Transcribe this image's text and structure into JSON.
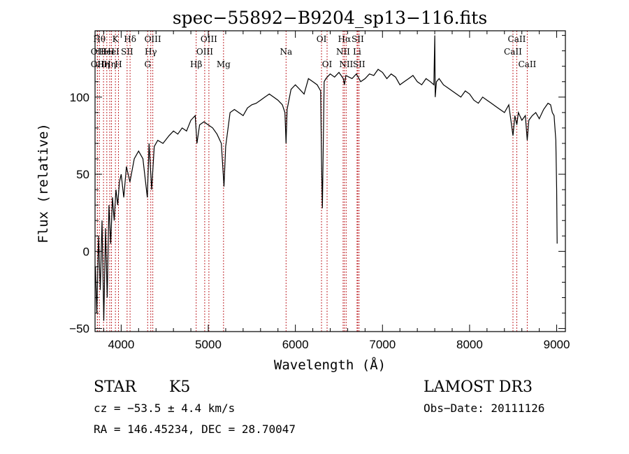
{
  "chart_data": {
    "type": "line",
    "title": "spec−55892−B9204_sp13−116.fits",
    "xlabel": "Wavelength (Å)",
    "ylabel": "Flux (relative)",
    "xlim": [
      3700,
      9100
    ],
    "ylim": [
      -52,
      143
    ],
    "x_ticks": [
      4000,
      5000,
      6000,
      7000,
      8000,
      9000
    ],
    "y_ticks": [
      -50,
      0,
      50,
      100
    ],
    "x_tick_labels": [
      "4000",
      "5000",
      "6000",
      "7000",
      "8000",
      "9000"
    ],
    "y_tick_labels": [
      "−50",
      "0",
      "50",
      "100"
    ],
    "series": [
      {
        "name": "spectrum",
        "x": [
          3705,
          3720,
          3740,
          3760,
          3780,
          3800,
          3820,
          3840,
          3860,
          3880,
          3900,
          3920,
          3940,
          3960,
          3980,
          4000,
          4030,
          4060,
          4100,
          4150,
          4200,
          4250,
          4300,
          4320,
          4350,
          4380,
          4420,
          4480,
          4550,
          4600,
          4650,
          4700,
          4750,
          4800,
          4850,
          4870,
          4900,
          4950,
          5000,
          5050,
          5100,
          5150,
          5180,
          5200,
          5250,
          5300,
          5350,
          5400,
          5450,
          5500,
          5550,
          5600,
          5650,
          5700,
          5750,
          5800,
          5850,
          5880,
          5893,
          5905,
          5950,
          6000,
          6050,
          6100,
          6150,
          6200,
          6250,
          6290,
          6300,
          6310,
          6330,
          6350,
          6400,
          6450,
          6500,
          6550,
          6563,
          6580,
          6650,
          6700,
          6750,
          6800,
          6850,
          6900,
          6950,
          7000,
          7050,
          7100,
          7150,
          7200,
          7250,
          7300,
          7350,
          7400,
          7450,
          7500,
          7550,
          7590,
          7600,
          7605,
          7620,
          7650,
          7700,
          7750,
          7800,
          7850,
          7900,
          7950,
          8000,
          8050,
          8100,
          8150,
          8200,
          8250,
          8300,
          8350,
          8400,
          8450,
          8498,
          8520,
          8542,
          8560,
          8600,
          8640,
          8662,
          8680,
          8720,
          8760,
          8800,
          8850,
          8900,
          8930,
          8950,
          8970,
          8990,
          9000,
          9005
        ],
        "y": [
          -10,
          -40,
          10,
          -25,
          20,
          -45,
          15,
          -30,
          30,
          5,
          35,
          20,
          40,
          30,
          45,
          50,
          35,
          55,
          45,
          60,
          65,
          60,
          35,
          70,
          40,
          68,
          72,
          70,
          75,
          78,
          76,
          80,
          78,
          85,
          88,
          70,
          82,
          84,
          82,
          80,
          76,
          70,
          42,
          68,
          90,
          92,
          90,
          88,
          93,
          95,
          96,
          98,
          100,
          102,
          100,
          98,
          95,
          90,
          70,
          92,
          105,
          108,
          105,
          102,
          112,
          110,
          108,
          104,
          60,
          28,
          110,
          112,
          115,
          113,
          116,
          112,
          108,
          114,
          112,
          115,
          110,
          112,
          115,
          114,
          118,
          116,
          112,
          115,
          113,
          108,
          110,
          112,
          114,
          110,
          108,
          112,
          110,
          108,
          140,
          100,
          110,
          112,
          108,
          106,
          104,
          102,
          100,
          104,
          102,
          98,
          96,
          100,
          98,
          96,
          94,
          92,
          90,
          95,
          75,
          88,
          82,
          90,
          85,
          88,
          72,
          85,
          88,
          90,
          86,
          92,
          96,
          95,
          90,
          88,
          72,
          40,
          5
        ]
      }
    ],
    "line_markers": [
      {
        "x": 3727,
        "label": "OII",
        "row": 2
      },
      {
        "x": 3727,
        "label": "OII",
        "row": 3
      },
      {
        "x": 3750,
        "label": "Hθ",
        "row": 1
      },
      {
        "x": 3797,
        "label": "Hη",
        "row": 3
      },
      {
        "x": 3835,
        "label": "HeI",
        "row": 2
      },
      {
        "x": 3869,
        "label": "Hη",
        "row": 3
      },
      {
        "x": 3889,
        "label": "HeI",
        "row": 2
      },
      {
        "x": 3934,
        "label": "K",
        "row": 1
      },
      {
        "x": 3969,
        "label": "H",
        "row": 3
      },
      {
        "x": 4068,
        "label": "SII",
        "row": 2
      },
      {
        "x": 4102,
        "label": "Hδ",
        "row": 1
      },
      {
        "x": 4304,
        "label": "G",
        "row": 3
      },
      {
        "x": 4340,
        "label": "Hγ",
        "row": 2
      },
      {
        "x": 4363,
        "label": "OIII",
        "row": 1
      },
      {
        "x": 4861,
        "label": "Hβ",
        "row": 3
      },
      {
        "x": 4959,
        "label": "OIII",
        "row": 2
      },
      {
        "x": 5007,
        "label": "OIII",
        "row": 1
      },
      {
        "x": 5175,
        "label": "Mg",
        "row": 3
      },
      {
        "x": 5893,
        "label": "Na",
        "row": 2
      },
      {
        "x": 6300,
        "label": "OI",
        "row": 1
      },
      {
        "x": 6364,
        "label": "OI",
        "row": 3
      },
      {
        "x": 6548,
        "label": "NII",
        "row": 2
      },
      {
        "x": 6563,
        "label": "Hα",
        "row": 1
      },
      {
        "x": 6583,
        "label": "NII",
        "row": 3
      },
      {
        "x": 6708,
        "label": "Li",
        "row": 2
      },
      {
        "x": 6716,
        "label": "SII",
        "row": 1
      },
      {
        "x": 6731,
        "label": "SII",
        "row": 3
      },
      {
        "x": 8498,
        "label": "CaII",
        "row": 2
      },
      {
        "x": 8542,
        "label": "CaII",
        "row": 1
      },
      {
        "x": 8662,
        "label": "CaII",
        "row": 3
      }
    ],
    "marker_color": "#c0282d",
    "line_color": "#000000"
  },
  "info": {
    "object_class": "STAR",
    "subclass": "K5",
    "survey": "LAMOST DR3",
    "redshift": "cz = −53.5 ± 4.4 km/s",
    "obs_date": "Obs−Date: 20111126",
    "coords": "RA = 146.45234, DEC =  28.70047"
  }
}
